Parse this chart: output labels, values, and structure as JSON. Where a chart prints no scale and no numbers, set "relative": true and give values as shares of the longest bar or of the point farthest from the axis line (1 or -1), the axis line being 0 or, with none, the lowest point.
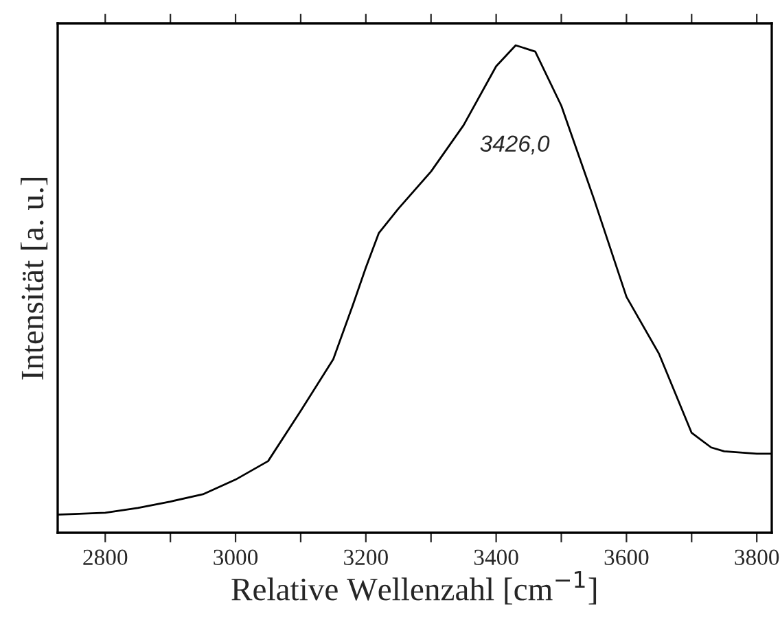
{
  "chart_data": {
    "type": "line",
    "relative": true,
    "xlabel": "Relative Wellenzahl [cm$^{−1}$]",
    "ylabel": "Intensität [a. u.]",
    "x": [
      2727,
      2800,
      2850,
      2900,
      2950,
      3000,
      3050,
      3100,
      3150,
      3180,
      3200,
      3220,
      3250,
      3300,
      3350,
      3400,
      3430,
      3460,
      3500,
      3550,
      3600,
      3650,
      3700,
      3730,
      3750,
      3800,
      3823
    ],
    "series": [
      {
        "color": "#000000",
        "values": [
          0.037,
          0.041,
          0.051,
          0.064,
          0.079,
          0.109,
          0.147,
          0.25,
          0.356,
          0.467,
          0.544,
          0.615,
          0.665,
          0.741,
          0.836,
          0.957,
          1.0,
          0.987,
          0.876,
          0.685,
          0.484,
          0.367,
          0.205,
          0.175,
          0.167,
          0.162,
          0.162
        ]
      }
    ],
    "xlim": [
      2727,
      3823
    ],
    "xticks": [
      2800,
      {
        "value": 2900,
        "label": null
      },
      3000,
      {
        "value": 3100,
        "label": null
      },
      3200,
      {
        "value": 3300,
        "label": null
      },
      3400,
      {
        "value": 3500,
        "label": null
      },
      3600,
      {
        "value": 3700,
        "label": null
      },
      3800
    ],
    "annotations": [
      "3426,0"
    ],
    "grid": false,
    "legend": false,
    "marker": "none",
    "line_style": "solid"
  }
}
